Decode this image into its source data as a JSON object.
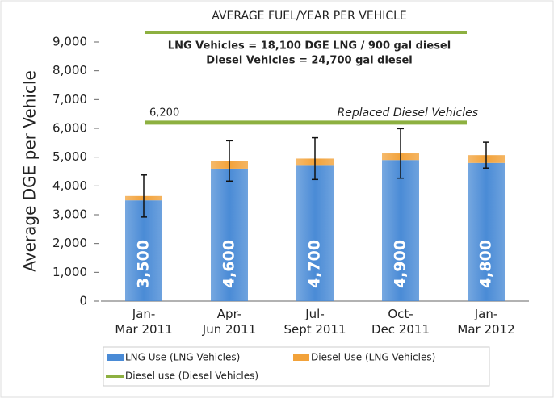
{
  "chart_data": {
    "type": "stacked_bar",
    "title": "AVERAGE FUEL/YEAR PER VEHICLE",
    "annotations": [
      "LNG Vehicles = 18,100 DGE LNG / 900 gal diesel",
      "Diesel Vehicles = 24,700 gal diesel"
    ],
    "y_label": "Average DGE per Vehicle",
    "categories": [
      "Jan-\nMar 2011",
      "Apr-\nJun 2011",
      "Jul-\nSept 2011",
      "Oct-\nDec 2011",
      "Jan-\nMar 2012"
    ],
    "series": [
      {
        "name": "LNG Use (LNG Vehicles)",
        "color": "#4a8bd6",
        "values": [
          3500,
          4600,
          4700,
          4900,
          4800
        ],
        "value_labels": [
          "3,500",
          "4,600",
          "4,700",
          "4,900",
          "4,800"
        ]
      },
      {
        "name": "Diesel Use (LNG Vehicles)",
        "color": "#f2a23a",
        "values": [
          150,
          270,
          250,
          230,
          270
        ],
        "errors": [
          730,
          700,
          725,
          860,
          450
        ]
      }
    ],
    "reference_line": {
      "name": "Diesel use (Diesel Vehicles)",
      "color": "#8db040",
      "value": 6200,
      "value_label": "6,200",
      "label": "Replaced Diesel Vehicles"
    },
    "ylim": [
      0,
      9000
    ],
    "yticks": [
      {
        "value": 0,
        "label": "0"
      },
      {
        "value": 1000,
        "label": "1,000"
      },
      {
        "value": 2000,
        "label": "2,000"
      },
      {
        "value": 3000,
        "label": "3,000"
      },
      {
        "value": 4000,
        "label": "4,000"
      },
      {
        "value": 5000,
        "label": "5,000"
      },
      {
        "value": 6000,
        "label": "6,000"
      },
      {
        "value": 7000,
        "label": "7,000"
      },
      {
        "value": 8000,
        "label": "8,000"
      },
      {
        "value": 9000,
        "label": "9,000"
      }
    ]
  }
}
